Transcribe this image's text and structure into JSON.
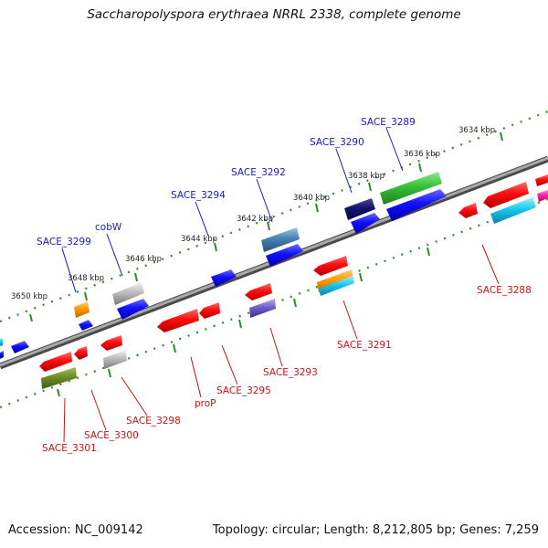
{
  "title": "Saccharopolyspora erythraea NRRL 2338, complete genome",
  "footer": {
    "accession": "Accession: NC_009142",
    "stats": "Topology: circular; Length: 8,212,805 bp; Genes: 7,259"
  },
  "colors": {
    "backbone": "#7d7d7d",
    "scale_ticks": "#2e8b2e",
    "label_top": "#1a1ab8",
    "label_bottom": "#c81414"
  },
  "scale_labels": [
    "3650 kbp",
    "3648 kbp",
    "3646 kbp",
    "3644 kbp",
    "3642 kbp",
    "3640 kbp",
    "3638 kbp",
    "3636 kbp",
    "3634 kbp"
  ],
  "genes_top": [
    "SACE_3299",
    "cobW",
    "SACE_3294",
    "SACE_3292",
    "SACE_3290",
    "SACE_3289"
  ],
  "genes_bottom": [
    "SACE_3301",
    "SACE_3300",
    "SACE_3298",
    "proP",
    "SACE_3295",
    "SACE_3293",
    "SACE_3291",
    "SACE_3288"
  ]
}
